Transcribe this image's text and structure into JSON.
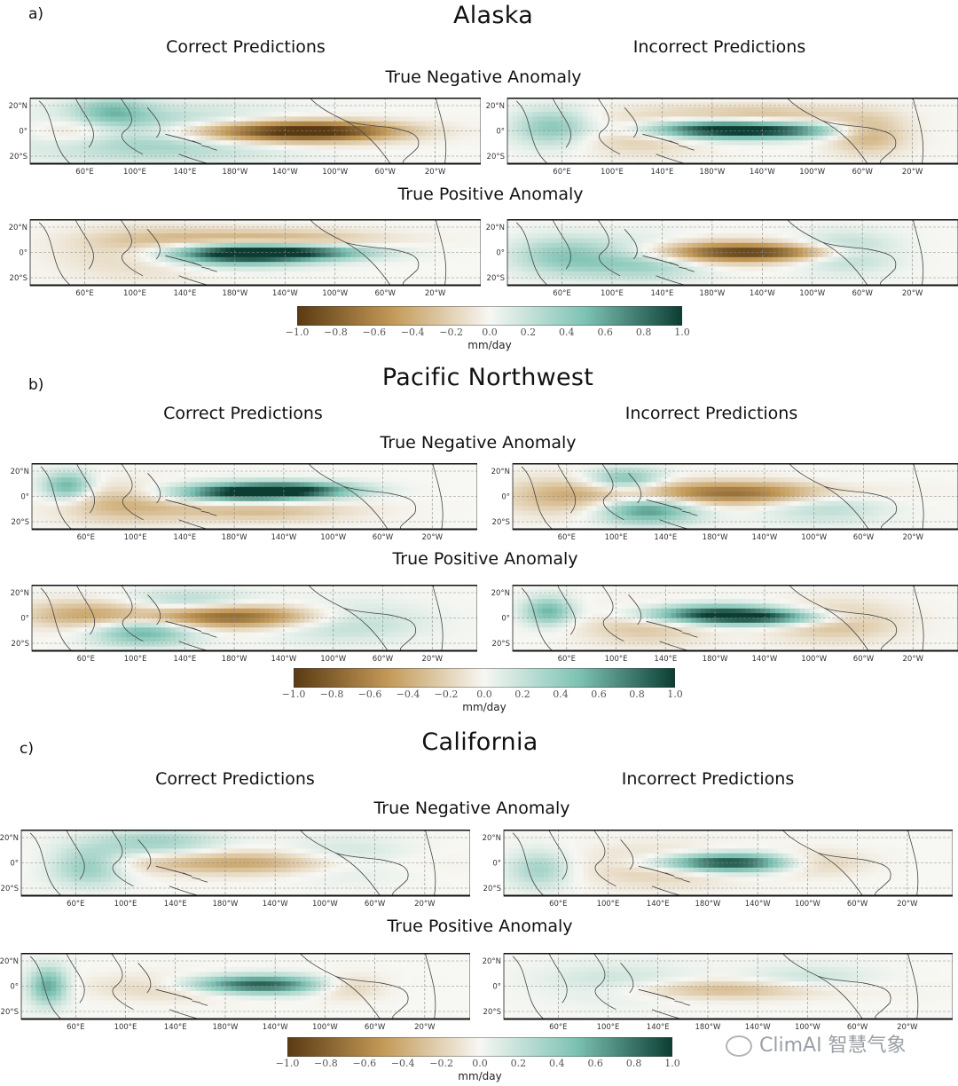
{
  "figure": {
    "column_titles": [
      "Correct Predictions",
      "Incorrect Predictions"
    ],
    "row_titles": [
      "True Negative Anomaly",
      "True Positive Anomaly"
    ],
    "lat_labels": [
      "20°N",
      "0°",
      "20°S"
    ],
    "lon_labels": [
      "60°E",
      "100°E",
      "140°E",
      "180°W",
      "140°W",
      "100°W",
      "60°W",
      "20°W"
    ],
    "colorbar": {
      "ticks": [
        "−1.0",
        "−0.8",
        "−0.6",
        "−0.4",
        "−0.2",
        "0.0",
        "0.2",
        "0.4",
        "0.6",
        "0.8",
        "1.0"
      ],
      "unit": "mm/day",
      "colors": {
        "negative": "#5a3a12",
        "mid_neg": "#c49a58",
        "zero": "#f7f7f3",
        "mid_pos": "#7cc2b3",
        "positive": "#0c3d33"
      }
    }
  },
  "panels": [
    {
      "letter": "a)",
      "title": "Alaska"
    },
    {
      "letter": "b)",
      "title": "Pacific Northwest"
    },
    {
      "letter": "c)",
      "title": "California"
    }
  ],
  "watermark": {
    "text": "ClimAI 智慧气象"
  }
}
